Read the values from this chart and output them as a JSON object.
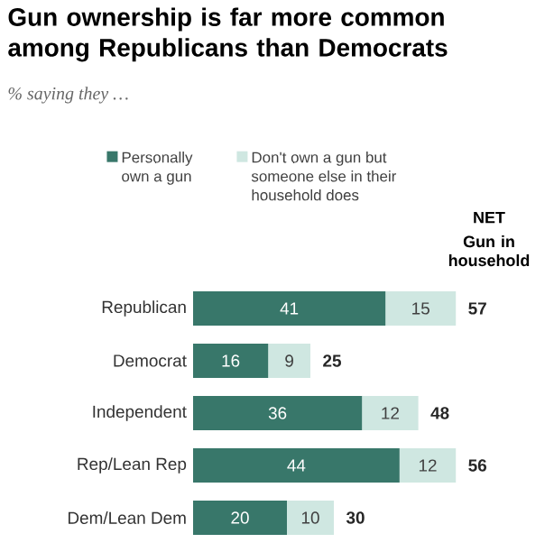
{
  "chart_data": {
    "type": "bar",
    "orientation": "horizontal",
    "stacked": true,
    "title": "Gun ownership is far more common among Republicans than Democrats",
    "subtitle": "% saying they …",
    "categories": [
      "Republican",
      "Democrat",
      "Independent",
      "Rep/Lean Rep",
      "Dem/Lean Dem"
    ],
    "series": [
      {
        "name": "Personally own a gun",
        "color": "#38776a",
        "values": [
          41,
          16,
          36,
          44,
          20
        ]
      },
      {
        "name": "Don't own a gun but someone else in their household does",
        "color": "#cfe7e1",
        "values": [
          15,
          9,
          12,
          12,
          10
        ]
      }
    ],
    "data_labels": true,
    "totals": [
      "57",
      "25",
      "48",
      "56",
      "30"
    ],
    "annotations": [
      "NET",
      "Gun in household"
    ],
    "legend": "top"
  }
}
